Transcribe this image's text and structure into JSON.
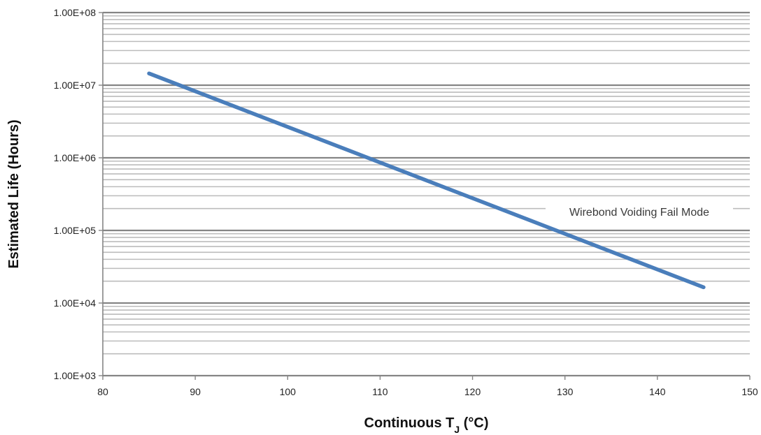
{
  "chart_data": {
    "type": "line",
    "xlabel": "Continuous T",
    "xlabel_subscript": "J",
    "xlabel_suffix": " (°C)",
    "ylabel": "Estimated Life (Hours)",
    "x_scale": "linear",
    "y_scale": "log",
    "xlim": [
      80,
      150
    ],
    "ylim": [
      1000,
      100000000
    ],
    "x_ticks": [
      80,
      90,
      100,
      110,
      120,
      130,
      140,
      150
    ],
    "x_tick_labels": [
      "80",
      "90",
      "100",
      "110",
      "120",
      "130",
      "140",
      "150"
    ],
    "y_ticks": [
      1000,
      10000,
      100000,
      1000000,
      10000000,
      100000000
    ],
    "y_tick_labels": [
      "1.00E+03",
      "1.00E+04",
      "1.00E+05",
      "1.00E+06",
      "1.00E+07",
      "1.00E+08"
    ],
    "grid": true,
    "minor_grid": true,
    "series": [
      {
        "name": "Wirebond Voiding Fail Mode",
        "color": "#4a7ebb",
        "points": [
          [
            85,
            14500000
          ],
          [
            145,
            16500
          ]
        ]
      }
    ],
    "annotations": [
      {
        "text": "Wirebond Voiding Fail Mode"
      }
    ]
  }
}
